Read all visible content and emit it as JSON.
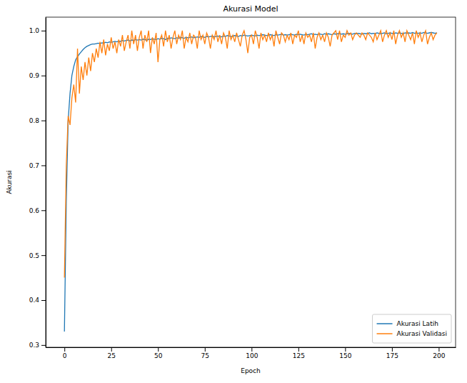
{
  "chart_data": {
    "type": "line",
    "title": "Akurasi Model",
    "x_label": "Epoch",
    "y_label": "Akurasi",
    "xlim": [
      -10,
      209
    ],
    "xticks": [
      0,
      25,
      50,
      75,
      100,
      125,
      150,
      175,
      200
    ],
    "ylim": [
      0.295,
      1.03
    ],
    "yticks": [
      0.3,
      0.4,
      0.5,
      0.6,
      0.7,
      0.8,
      0.9,
      {
        "value": 1,
        "label": "1.0"
      }
    ],
    "grid": false,
    "legend": "lower right",
    "x": [
      0,
      1,
      2,
      3,
      4,
      5,
      6,
      7,
      8,
      9,
      10,
      11,
      12,
      13,
      14,
      15,
      16,
      17,
      18,
      19,
      20,
      21,
      22,
      23,
      24,
      25,
      26,
      27,
      28,
      29,
      30,
      31,
      32,
      33,
      34,
      35,
      36,
      37,
      38,
      39,
      40,
      41,
      42,
      43,
      44,
      45,
      46,
      47,
      48,
      49,
      50,
      51,
      52,
      53,
      54,
      55,
      56,
      57,
      58,
      59,
      60,
      61,
      62,
      63,
      64,
      65,
      66,
      67,
      68,
      69,
      70,
      71,
      72,
      73,
      74,
      75,
      76,
      77,
      78,
      79,
      80,
      81,
      82,
      83,
      84,
      85,
      86,
      87,
      88,
      89,
      90,
      91,
      92,
      93,
      94,
      95,
      96,
      97,
      98,
      99,
      100,
      101,
      102,
      103,
      104,
      105,
      106,
      107,
      108,
      109,
      110,
      111,
      112,
      113,
      114,
      115,
      116,
      117,
      118,
      119,
      120,
      121,
      122,
      123,
      124,
      125,
      126,
      127,
      128,
      129,
      130,
      131,
      132,
      133,
      134,
      135,
      136,
      137,
      138,
      139,
      140,
      141,
      142,
      143,
      144,
      145,
      146,
      147,
      148,
      149,
      150,
      151,
      152,
      153,
      154,
      155,
      156,
      157,
      158,
      159,
      160,
      161,
      162,
      163,
      164,
      165,
      166,
      167,
      168,
      169,
      170,
      171,
      172,
      173,
      174,
      175,
      176,
      177,
      178,
      179,
      180,
      181,
      182,
      183,
      184,
      185,
      186,
      187,
      188,
      189,
      190,
      191,
      192,
      193,
      194,
      195,
      196,
      197,
      198,
      199
    ],
    "series": [
      {
        "name": "Akurasi Latih",
        "color": "#1f77b4",
        "values": [
          0.33,
          0.62,
          0.8,
          0.86,
          0.9,
          0.92,
          0.935,
          0.942,
          0.948,
          0.953,
          0.958,
          0.962,
          0.965,
          0.967,
          0.969,
          0.97,
          0.97,
          0.971,
          0.972,
          0.971,
          0.973,
          0.972,
          0.974,
          0.973,
          0.975,
          0.974,
          0.975,
          0.976,
          0.975,
          0.977,
          0.976,
          0.978,
          0.977,
          0.978,
          0.979,
          0.977,
          0.979,
          0.978,
          0.98,
          0.979,
          0.98,
          0.979,
          0.981,
          0.98,
          0.978,
          0.981,
          0.98,
          0.982,
          0.981,
          0.98,
          0.982,
          0.981,
          0.983,
          0.982,
          0.98,
          0.983,
          0.982,
          0.984,
          0.983,
          0.982,
          0.984,
          0.983,
          0.985,
          0.984,
          0.983,
          0.985,
          0.984,
          0.985,
          0.986,
          0.984,
          0.985,
          0.986,
          0.985,
          0.987,
          0.986,
          0.985,
          0.987,
          0.986,
          0.987,
          0.988,
          0.986,
          0.987,
          0.988,
          0.987,
          0.986,
          0.988,
          0.987,
          0.989,
          0.988,
          0.987,
          0.988,
          0.989,
          0.988,
          0.987,
          0.989,
          0.988,
          0.99,
          0.989,
          0.988,
          0.989,
          0.99,
          0.989,
          0.988,
          0.99,
          0.989,
          0.99,
          0.991,
          0.99,
          0.989,
          0.99,
          0.991,
          0.99,
          0.989,
          0.991,
          0.99,
          0.991,
          0.992,
          0.99,
          0.991,
          0.99,
          0.991,
          0.992,
          0.991,
          0.99,
          0.992,
          0.991,
          0.992,
          0.991,
          0.99,
          0.992,
          0.991,
          0.992,
          0.993,
          0.991,
          0.992,
          0.991,
          0.993,
          0.992,
          0.991,
          0.993,
          0.992,
          0.993,
          0.992,
          0.991,
          0.993,
          0.992,
          0.993,
          0.994,
          0.992,
          0.993,
          0.992,
          0.993,
          0.994,
          0.993,
          0.992,
          0.994,
          0.993,
          0.994,
          0.993,
          0.992,
          0.994,
          0.993,
          0.994,
          0.995,
          0.993,
          0.994,
          0.993,
          0.995,
          0.994,
          0.993,
          0.994,
          0.995,
          0.993,
          0.994,
          0.995,
          0.994,
          0.993,
          0.995,
          0.994,
          0.995,
          0.994,
          0.993,
          0.995,
          0.994,
          0.995,
          0.994,
          0.996,
          0.994,
          0.995,
          0.994,
          0.995,
          0.994,
          0.996,
          0.995,
          0.994,
          0.995,
          0.996,
          0.995,
          0.994,
          0.995
        ]
      },
      {
        "name": "Akurasi Validasi",
        "color": "#ff7f0e",
        "values": [
          0.45,
          0.7,
          0.81,
          0.79,
          0.85,
          0.88,
          0.84,
          0.96,
          0.86,
          0.92,
          0.89,
          0.93,
          0.9,
          0.94,
          0.91,
          0.95,
          0.93,
          0.96,
          0.94,
          0.975,
          0.95,
          0.98,
          0.945,
          0.97,
          0.955,
          0.985,
          0.96,
          0.975,
          0.95,
          0.98,
          0.965,
          0.99,
          0.955,
          0.975,
          0.99,
          0.96,
          1.0,
          0.97,
          0.99,
          0.955,
          0.985,
          1.0,
          0.96,
          0.99,
          0.975,
          1.0,
          0.95,
          0.985,
          0.97,
          0.995,
          0.93,
          0.98,
          0.99,
          0.965,
          1.0,
          0.975,
          0.99,
          0.96,
          0.985,
          1.0,
          0.97,
          0.99,
          0.98,
          1.0,
          0.96,
          0.985,
          0.975,
          0.995,
          0.97,
          0.99,
          0.985,
          0.96,
          1.0,
          0.98,
          0.99,
          0.97,
          0.995,
          0.985,
          0.96,
          0.99,
          0.98,
          1.0,
          0.975,
          0.99,
          0.97,
          0.995,
          0.985,
          0.96,
          1.0,
          0.98,
          0.99,
          0.975,
          0.995,
          0.98,
          0.965,
          0.99,
          1.0,
          0.98,
          0.95,
          0.985,
          0.99,
          0.97,
          1.0,
          0.985,
          0.96,
          0.995,
          0.98,
          0.99,
          0.975,
          0.995,
          0.98,
          0.99,
          0.965,
          1.0,
          0.985,
          0.97,
          0.995,
          0.99,
          0.975,
          0.99,
          0.98,
          0.995,
          0.97,
          0.99,
          0.985,
          1.0,
          0.975,
          0.99,
          0.97,
          0.995,
          0.985,
          0.99,
          0.975,
          0.995,
          0.96,
          0.985,
          0.995,
          0.98,
          0.99,
          0.975,
          0.995,
          0.985,
          0.965,
          0.99,
          0.995,
          1.0,
          0.98,
          1.0,
          0.975,
          0.99,
          0.985,
          1.0,
          0.99,
          0.995,
          0.98,
          0.99,
          0.995,
          0.99,
          0.985,
          0.995,
          0.99,
          0.98,
          0.995,
          0.99,
          0.985,
          0.975,
          0.995,
          0.98,
          0.99,
          1.0,
          0.975,
          0.99,
          1.0,
          0.985,
          0.995,
          0.98,
          1.0,
          0.97,
          0.99,
          1.0,
          0.985,
          0.995,
          0.975,
          1.0,
          0.99,
          0.98,
          0.995,
          0.97,
          1.0,
          0.985,
          0.995,
          0.975,
          0.99,
          1.0,
          0.97,
          0.985,
          0.995,
          0.98,
          0.99,
          0.995
        ]
      }
    ]
  }
}
